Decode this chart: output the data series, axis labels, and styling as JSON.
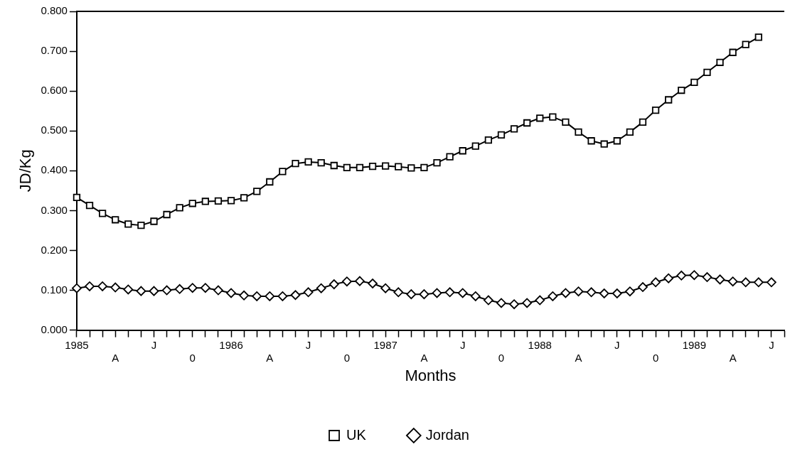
{
  "chart_data": {
    "type": "line",
    "xlabel": "Months",
    "ylabel": "JD/Kg",
    "categories": [
      "1985",
      null,
      null,
      "A",
      null,
      null,
      "J",
      null,
      null,
      "0",
      null,
      null,
      "1986",
      null,
      null,
      "A",
      null,
      null,
      "J",
      null,
      null,
      "0",
      null,
      null,
      "1987",
      null,
      null,
      "A",
      null,
      null,
      "J",
      null,
      null,
      "0",
      null,
      null,
      "1988",
      null,
      null,
      "A",
      null,
      null,
      "J",
      null,
      null,
      "0",
      null,
      null,
      "1989",
      null,
      null,
      "A",
      null,
      null,
      "J",
      null
    ],
    "series": [
      {
        "name": "UK",
        "color": "#000000",
        "marker": "square",
        "values": [
          0.333,
          0.313,
          0.293,
          0.277,
          0.266,
          0.263,
          0.273,
          0.29,
          0.307,
          0.318,
          0.323,
          0.324,
          0.325,
          0.332,
          0.348,
          0.372,
          0.398,
          0.418,
          0.422,
          0.42,
          0.413,
          0.408,
          0.408,
          0.411,
          0.412,
          0.41,
          0.407,
          0.408,
          0.42,
          0.435,
          0.45,
          0.462,
          0.477,
          0.49,
          0.505,
          0.52,
          0.532,
          0.535,
          0.522,
          0.497,
          0.475,
          0.467,
          0.475,
          0.497,
          0.522,
          0.552,
          0.578,
          0.602,
          0.622,
          0.647,
          0.672,
          0.697,
          0.717,
          0.735,
          null,
          null
        ]
      },
      {
        "name": "Jordan",
        "color": "#000000",
        "marker": "diamond",
        "values": [
          0.105,
          0.11,
          0.11,
          0.107,
          0.102,
          0.098,
          0.098,
          0.1,
          0.103,
          0.106,
          0.106,
          0.1,
          0.093,
          0.087,
          0.085,
          0.085,
          0.085,
          0.088,
          0.095,
          0.105,
          0.115,
          0.122,
          0.123,
          0.117,
          0.105,
          0.095,
          0.09,
          0.09,
          0.093,
          0.095,
          0.093,
          0.085,
          0.075,
          0.068,
          0.065,
          0.068,
          0.075,
          0.085,
          0.093,
          0.097,
          0.095,
          0.092,
          0.092,
          0.097,
          0.108,
          0.12,
          0.13,
          0.137,
          0.138,
          0.133,
          0.127,
          0.122,
          0.12,
          0.12,
          0.12,
          null
        ]
      }
    ],
    "ylim": [
      0,
      0.8
    ],
    "yticks": [
      {
        "value": 0,
        "label": "0.000"
      },
      {
        "value": 0.1,
        "label": "0.100"
      },
      {
        "value": 0.2,
        "label": "0.200"
      },
      {
        "value": 0.3,
        "label": "0.300"
      },
      {
        "value": 0.4,
        "label": "0.400"
      },
      {
        "value": 0.5,
        "label": "0.500"
      },
      {
        "value": 0.6,
        "label": "0.600"
      },
      {
        "value": 0.7,
        "label": "0.700"
      },
      {
        "value": 0.8,
        "label": "0.800"
      }
    ],
    "grid": false,
    "legend": "bottom"
  }
}
